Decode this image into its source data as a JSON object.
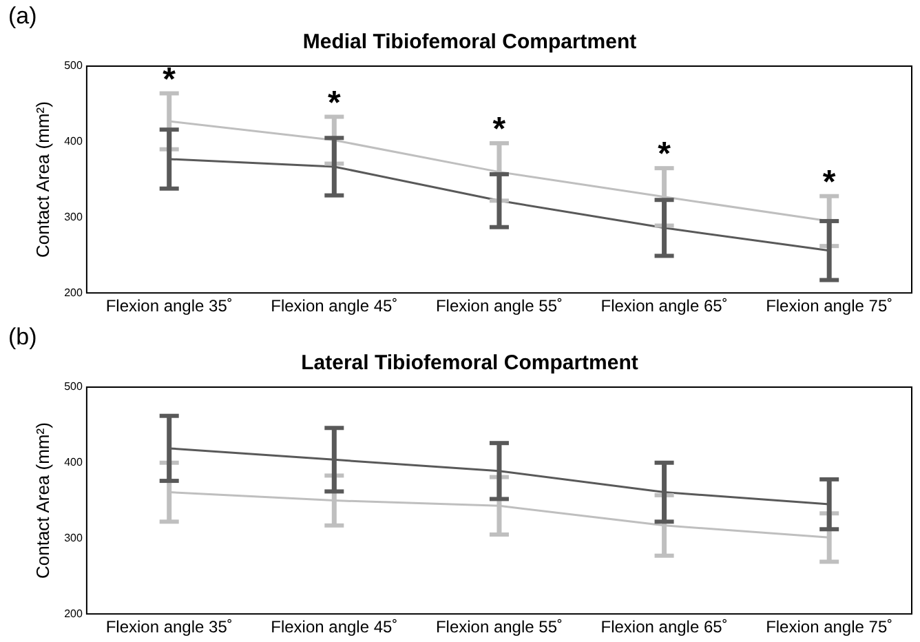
{
  "chart_data": [
    {
      "type": "line",
      "title": "Medial Tibiofemoral Compartment",
      "ylabel": "Contact Area (mm²)",
      "categories": [
        "Flexion angle 35˚",
        "Flexion angle 45˚",
        "Flexion angle 55˚",
        "Flexion angle 65˚",
        "Flexion angle 75˚"
      ],
      "series": [
        {
          "color": "#bfbfbf",
          "values": [
            427,
            402,
            360,
            327,
            295
          ],
          "errors": [
            37,
            31,
            38,
            38,
            33
          ]
        },
        {
          "color": "#595959",
          "values": [
            377,
            367,
            322,
            286,
            256
          ],
          "errors": [
            39,
            38,
            35,
            37,
            39
          ]
        }
      ],
      "ylim": [
        200,
        500
      ],
      "yticks": [
        200,
        300,
        400,
        500
      ],
      "grid": false,
      "legend": false,
      "marker": "none",
      "line_style": "solid",
      "annotations": [
        "(a)",
        "*",
        "*",
        "*",
        "*",
        "*"
      ]
    },
    {
      "type": "line",
      "title": "Lateral Tibiofemoral Compartment",
      "ylabel": "Contact Area (mm²)",
      "categories": [
        "Flexion angle 35˚",
        "Flexion angle 45˚",
        "Flexion angle 55˚",
        "Flexion angle 65˚",
        "Flexion angle 75˚"
      ],
      "series": [
        {
          "color": "#bfbfbf",
          "values": [
            361,
            350,
            343,
            317,
            301
          ],
          "errors": [
            39,
            33,
            38,
            40,
            32
          ]
        },
        {
          "color": "#595959",
          "values": [
            419,
            404,
            389,
            361,
            345
          ],
          "errors": [
            43,
            42,
            37,
            39,
            33
          ]
        }
      ],
      "ylim": [
        200,
        500
      ],
      "yticks": [
        200,
        300,
        400,
        500
      ],
      "grid": false,
      "legend": false,
      "marker": "none",
      "line_style": "solid",
      "annotations": [
        "(b)"
      ]
    }
  ]
}
